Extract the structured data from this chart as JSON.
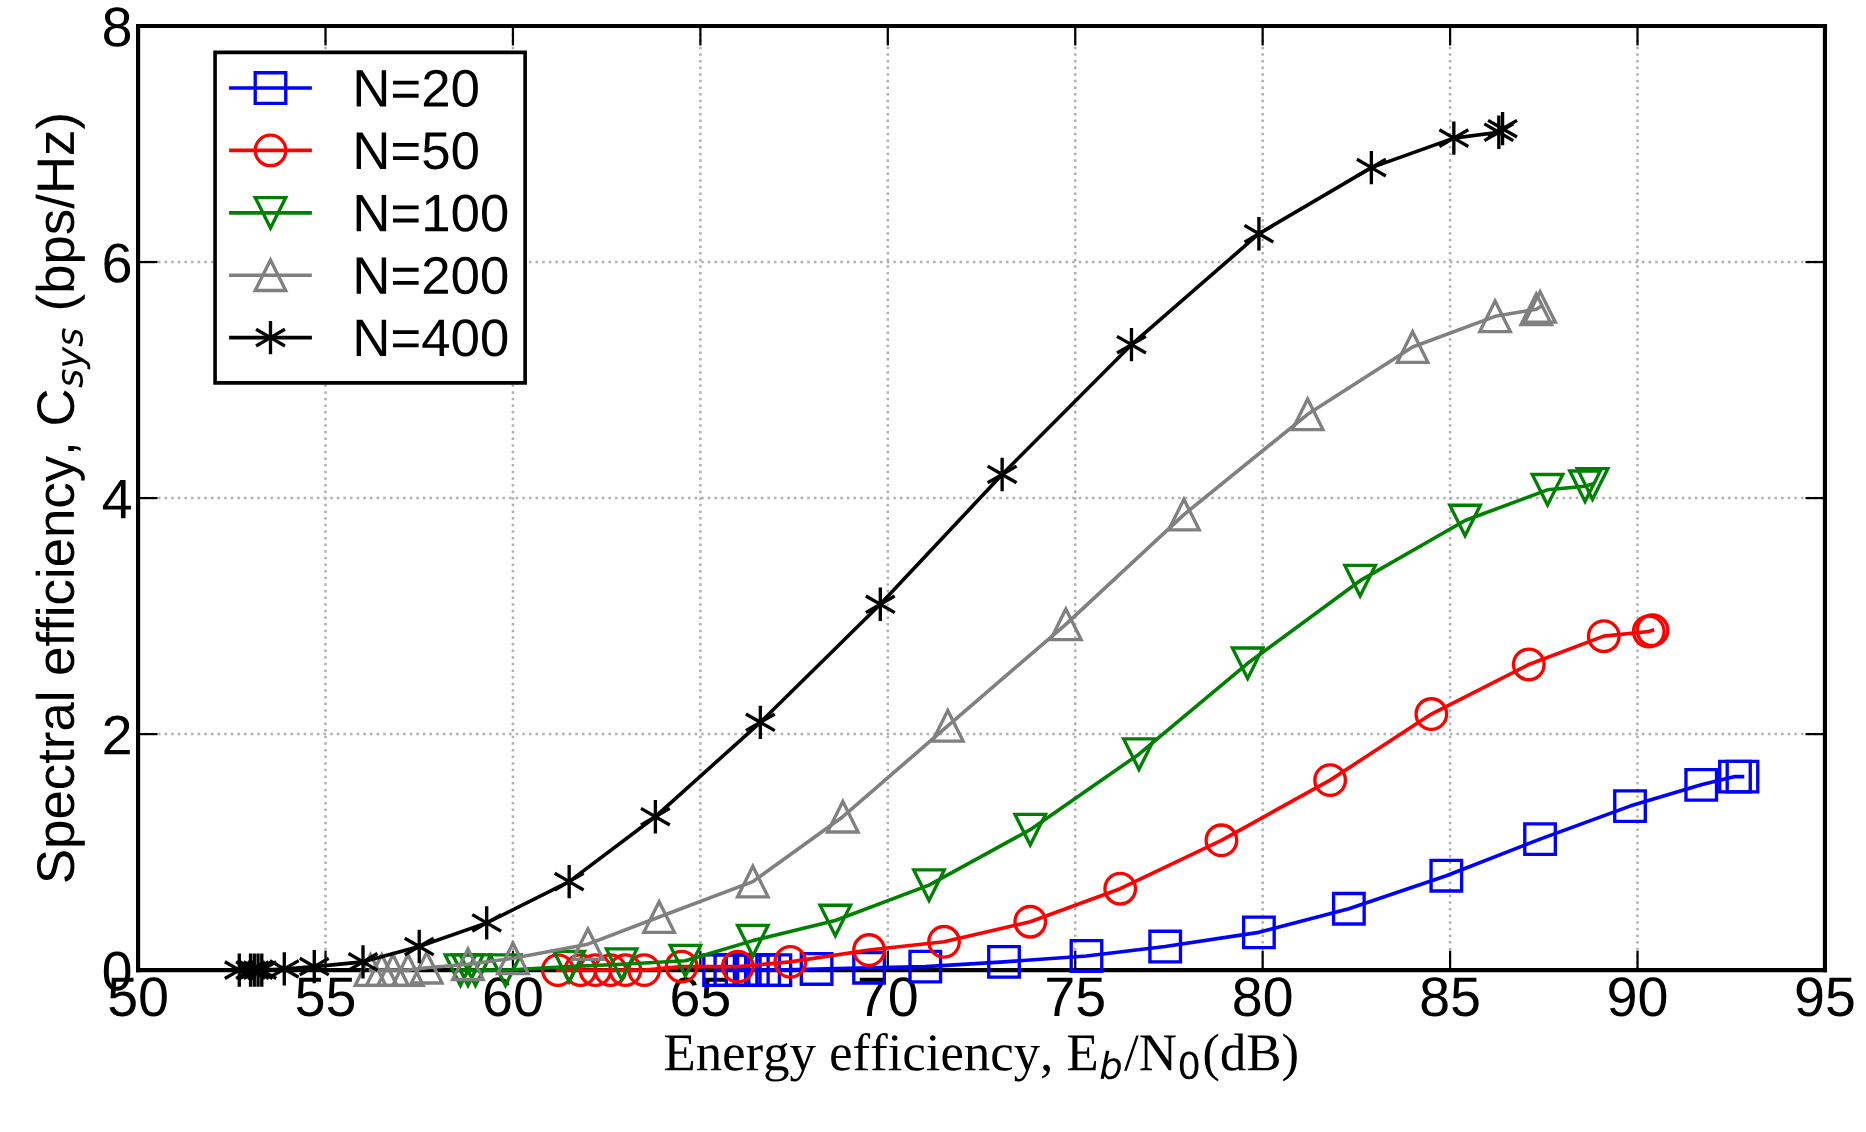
{
  "chart_data": {
    "type": "line",
    "xlabel": "Energy efficiency, E$_{b}$/N$_{0}$(dB)",
    "ylabel": "Spectral efficiency, C$_{sys}$ (bps/Hz)",
    "xlim": [
      50,
      95
    ],
    "xticks": [
      50,
      55,
      60,
      65,
      70,
      75,
      80,
      85,
      90,
      95
    ],
    "ylim": [
      0,
      8
    ],
    "yticks": [
      0,
      2,
      4,
      6,
      8
    ],
    "grid": true,
    "legend": "top left",
    "line_style": "solid",
    "series": [
      {
        "name": "N=20",
        "color": "#0000ff",
        "marker": "square",
        "x": [
          65.5,
          65.8,
          66.1,
          66.4,
          66.7,
          67.0,
          68.1,
          69.5,
          71.0,
          73.1,
          75.3,
          77.4,
          79.9,
          82.3,
          84.9,
          87.4,
          89.8,
          91.7,
          92.6,
          92.8
        ],
        "values": [
          0,
          0,
          0,
          0,
          0,
          0,
          0.01,
          0.02,
          0.03,
          0.07,
          0.12,
          0.2,
          0.32,
          0.52,
          0.8,
          1.11,
          1.39,
          1.57,
          1.64,
          1.64
        ]
      },
      {
        "name": "N=50",
        "color": "#ff0000",
        "marker": "circle",
        "x": [
          61.2,
          61.8,
          62.2,
          62.6,
          63.0,
          63.5,
          64.5,
          66.0,
          67.4,
          69.5,
          71.5,
          73.8,
          76.2,
          78.9,
          81.8,
          84.5,
          87.1,
          89.1,
          90.3,
          90.4
        ],
        "values": [
          0,
          0,
          0,
          0,
          0,
          0,
          0.03,
          0.03,
          0.07,
          0.17,
          0.24,
          0.41,
          0.69,
          1.1,
          1.61,
          2.17,
          2.59,
          2.83,
          2.87,
          2.88
        ]
      },
      {
        "name": "N=100",
        "color": "#008000",
        "marker": "triangle_down",
        "x": [
          58.6,
          58.8,
          59.0,
          59.8,
          61.5,
          62.9,
          64.6,
          66.4,
          68.6,
          71.1,
          73.8,
          76.7,
          79.6,
          82.6,
          85.4,
          87.6,
          88.6,
          88.8
        ],
        "values": [
          0,
          0,
          0,
          0,
          0.03,
          0.05,
          0.08,
          0.25,
          0.42,
          0.72,
          1.19,
          1.83,
          2.6,
          3.3,
          3.81,
          4.07,
          4.1,
          4.12
        ]
      },
      {
        "name": "N=200",
        "color": "#808080",
        "marker": "triangle",
        "x": [
          56.2,
          56.5,
          56.8,
          57.2,
          57.7,
          58.8,
          60.0,
          62.0,
          63.9,
          66.4,
          68.8,
          71.6,
          74.75,
          77.9,
          81.2,
          84.0,
          86.2,
          87.3,
          87.4
        ],
        "values": [
          0,
          0,
          0,
          0,
          0.02,
          0.05,
          0.1,
          0.22,
          0.45,
          0.75,
          1.3,
          2.07,
          2.93,
          3.86,
          4.71,
          5.28,
          5.54,
          5.6,
          5.62
        ]
      },
      {
        "name": "N=400",
        "color": "#000000",
        "marker": "cross",
        "x": [
          52.7,
          53.0,
          53.1,
          53.2,
          53.3,
          53.9,
          54.7,
          56.0,
          57.5,
          59.3,
          61.5,
          63.8,
          66.6,
          69.8,
          73.05,
          76.5,
          79.9,
          82.9,
          85.1,
          86.3,
          86.4
        ],
        "values": [
          0,
          0,
          0,
          0,
          0,
          0.01,
          0.03,
          0.07,
          0.2,
          0.4,
          0.75,
          1.3,
          2.1,
          3.1,
          4.2,
          5.3,
          6.24,
          6.8,
          7.05,
          7.1,
          7.13
        ]
      }
    ]
  }
}
